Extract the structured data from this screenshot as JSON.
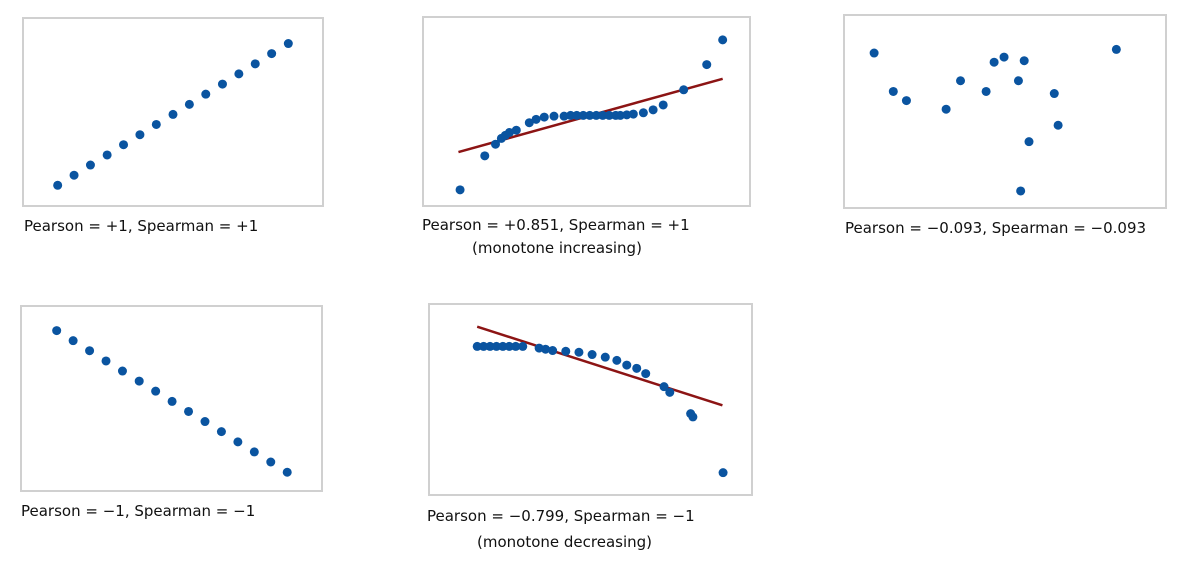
{
  "colors": {
    "points": "#0a54a0",
    "fit_line": "#8c1414",
    "border": "#d0d0d0"
  },
  "chart_data": [
    {
      "type": "scatter",
      "title": "Pearson = +1, Spearman = +1",
      "subtitle": "",
      "xlim": [
        0,
        100
      ],
      "ylim": [
        0,
        100
      ],
      "points": [
        [
          11.3,
          10.6
        ],
        [
          16.8,
          16.0
        ],
        [
          22.3,
          21.5
        ],
        [
          27.9,
          26.9
        ],
        [
          33.4,
          32.4
        ],
        [
          38.9,
          37.8
        ],
        [
          44.4,
          43.3
        ],
        [
          50.0,
          48.7
        ],
        [
          55.5,
          54.1
        ],
        [
          61.0,
          59.6
        ],
        [
          66.6,
          65.0
        ],
        [
          72.1,
          70.5
        ],
        [
          77.6,
          75.9
        ],
        [
          83.1,
          81.4
        ],
        [
          88.7,
          86.8
        ]
      ],
      "fit_line": null
    },
    {
      "type": "scatter",
      "title": "Pearson = +0.851, Spearman = +1",
      "subtitle": "(monotone increasing)",
      "xlim": [
        0,
        100
      ],
      "ylim": [
        0,
        100
      ],
      "points": [
        [
          11.1,
          8.1
        ],
        [
          18.7,
          26.3
        ],
        [
          22.0,
          32.5
        ],
        [
          23.8,
          35.6
        ],
        [
          25.0,
          37.2
        ],
        [
          26.3,
          38.8
        ],
        [
          28.4,
          40.0
        ],
        [
          32.4,
          44.0
        ],
        [
          34.5,
          45.8
        ],
        [
          37.0,
          47.0
        ],
        [
          40.0,
          47.5
        ],
        [
          43.1,
          47.5
        ],
        [
          45.1,
          47.9
        ],
        [
          47.0,
          47.9
        ],
        [
          49.0,
          47.9
        ],
        [
          51.0,
          47.9
        ],
        [
          53.0,
          47.9
        ],
        [
          55.0,
          47.9
        ],
        [
          57.0,
          47.9
        ],
        [
          59.0,
          47.9
        ],
        [
          60.4,
          47.9
        ],
        [
          62.4,
          48.2
        ],
        [
          64.4,
          48.6
        ],
        [
          67.5,
          49.3
        ],
        [
          70.5,
          50.9
        ],
        [
          73.6,
          53.5
        ],
        [
          79.9,
          61.6
        ],
        [
          87.0,
          75.1
        ],
        [
          91.9,
          88.3
        ]
      ],
      "fit_line": [
        [
          10.6,
          28.3
        ],
        [
          91.9,
          67.5
        ]
      ]
    },
    {
      "type": "scatter",
      "title": "Pearson = −0.093, Spearman = −0.093",
      "subtitle": "",
      "xlim": [
        0,
        100
      ],
      "ylim": [
        0,
        100
      ],
      "points": [
        [
          9.1,
          80.6
        ],
        [
          15.1,
          60.5
        ],
        [
          19.2,
          55.7
        ],
        [
          31.6,
          51.2
        ],
        [
          36.1,
          66.1
        ],
        [
          44.1,
          60.5
        ],
        [
          46.6,
          75.8
        ],
        [
          49.7,
          78.5
        ],
        [
          56.0,
          76.6
        ],
        [
          54.2,
          66.1
        ],
        [
          65.4,
          59.4
        ],
        [
          66.6,
          42.8
        ],
        [
          57.5,
          34.2
        ],
        [
          54.9,
          8.4
        ],
        [
          84.8,
          82.5
        ]
      ],
      "fit_line": null
    },
    {
      "type": "scatter",
      "title": "Pearson = −1, Spearman = −1",
      "subtitle": "",
      "xlim": [
        0,
        100
      ],
      "ylim": [
        0,
        100
      ],
      "points": [
        [
          11.6,
          87.1
        ],
        [
          17.1,
          81.6
        ],
        [
          22.6,
          76.1
        ],
        [
          28.1,
          70.5
        ],
        [
          33.6,
          65.0
        ],
        [
          39.2,
          59.5
        ],
        [
          44.7,
          54.0
        ],
        [
          50.2,
          48.4
        ],
        [
          55.7,
          42.9
        ],
        [
          61.2,
          37.4
        ],
        [
          66.7,
          31.9
        ],
        [
          72.2,
          26.3
        ],
        [
          77.7,
          20.8
        ],
        [
          83.2,
          15.3
        ],
        [
          88.7,
          9.7
        ]
      ],
      "fit_line": null
    },
    {
      "type": "scatter",
      "title": "Pearson = −0.799, Spearman = −1",
      "subtitle": "(monotone decreasing)",
      "xlim": [
        0,
        100
      ],
      "ylim": [
        0,
        100
      ],
      "points": [
        [
          14.7,
          78.1
        ],
        [
          16.7,
          78.1
        ],
        [
          18.7,
          78.1
        ],
        [
          20.7,
          78.1
        ],
        [
          22.7,
          78.1
        ],
        [
          24.7,
          78.1
        ],
        [
          26.7,
          78.1
        ],
        [
          28.9,
          78.1
        ],
        [
          34.0,
          77.2
        ],
        [
          36.0,
          76.6
        ],
        [
          38.2,
          75.9
        ],
        [
          42.3,
          75.5
        ],
        [
          46.4,
          75.0
        ],
        [
          50.5,
          73.8
        ],
        [
          54.6,
          72.4
        ],
        [
          58.2,
          70.7
        ],
        [
          61.3,
          68.2
        ],
        [
          64.4,
          66.5
        ],
        [
          67.2,
          63.7
        ],
        [
          72.9,
          56.8
        ],
        [
          74.7,
          53.8
        ],
        [
          81.2,
          42.5
        ],
        [
          81.9,
          40.8
        ],
        [
          91.3,
          11.3
        ]
      ],
      "fit_line": [
        [
          14.7,
          88.5
        ],
        [
          91.1,
          46.9
        ]
      ]
    }
  ]
}
